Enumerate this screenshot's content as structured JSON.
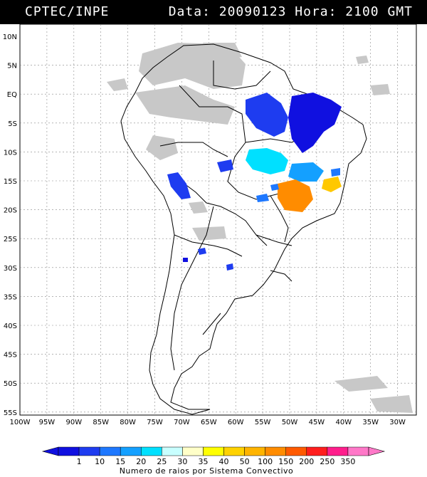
{
  "header": {
    "source": "CPTEC/INPE",
    "datetime": "Data: 20090123 Hora: 2100 GMT"
  },
  "map": {
    "lat_labels": [
      "10N",
      "5N",
      "EQ",
      "5S",
      "10S",
      "15S",
      "20S",
      "25S",
      "30S",
      "35S",
      "40S",
      "45S",
      "50S",
      "55S"
    ],
    "lon_labels": [
      "100W",
      "95W",
      "90W",
      "85W",
      "80W",
      "75W",
      "70W",
      "65W",
      "60W",
      "55W",
      "50W",
      "45W",
      "40W",
      "35W",
      "30W"
    ],
    "grid": true
  },
  "legend": {
    "title": "Numero de raios por Sistema Convectivo",
    "ticks": [
      "1",
      "10",
      "15",
      "20",
      "25",
      "30",
      "35",
      "40",
      "50",
      "100",
      "150",
      "200",
      "250",
      "350"
    ],
    "colors": [
      "#1010e0",
      "#1e3cf0",
      "#1e78ff",
      "#14a0ff",
      "#00e0ff",
      "#c8ffff",
      "#ffffc8",
      "#ffff00",
      "#ffd200",
      "#ffb400",
      "#ff8c00",
      "#ff5a00",
      "#ff1e1e",
      "#ff1e8c",
      "#ff78c8"
    ]
  }
}
